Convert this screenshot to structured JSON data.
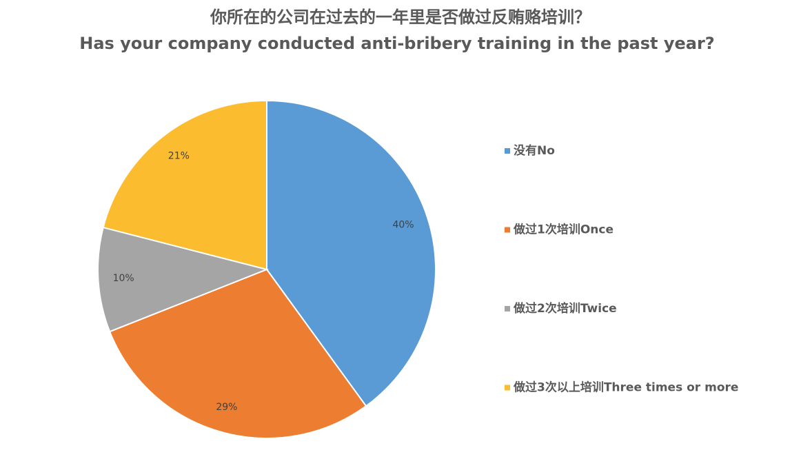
{
  "chart_data": {
    "type": "pie",
    "title": "你所在的公司在过去的一年里是否做过反贿赂培训？",
    "subtitle": "Has your company conducted anti-bribery training in the past year?",
    "categories": [
      "没有No",
      "做过1次培训Once",
      "做过2次培训Twice",
      "做过3次以上培训Three times or more"
    ],
    "values": [
      40,
      29,
      10,
      21
    ],
    "value_labels": [
      "40%",
      "29%",
      "10%",
      "21%"
    ],
    "colors": [
      "#5b9bd5",
      "#ed7d31",
      "#a5a5a5",
      "#fbbd2f"
    ],
    "legend": "right"
  }
}
